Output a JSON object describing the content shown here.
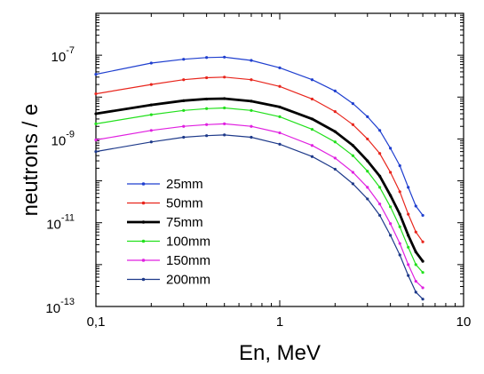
{
  "chart_data": {
    "type": "line",
    "xlabel": "En, MeV",
    "ylabel": "neutrons / e",
    "x_scale": "log",
    "y_scale": "log",
    "xlim": [
      0.1,
      10
    ],
    "ylim": [
      1e-13,
      1e-06
    ],
    "x_ticks": [
      {
        "value": 0.1,
        "label": "0,1"
      },
      {
        "value": 1,
        "label": "1"
      },
      {
        "value": 10,
        "label": "10"
      }
    ],
    "y_ticks": [
      {
        "value": 1e-13,
        "base": "10",
        "exp": "-13"
      },
      {
        "value": 1e-11,
        "base": "10",
        "exp": "-11"
      },
      {
        "value": 1e-09,
        "base": "10",
        "exp": "-9"
      },
      {
        "value": 1e-07,
        "base": "10",
        "exp": "-7"
      }
    ],
    "legend_position": "bottom-left",
    "x": [
      0.1,
      0.2,
      0.3,
      0.4,
      0.5,
      0.7,
      1.0,
      1.5,
      2.0,
      2.5,
      3.0,
      3.5,
      4.0,
      4.5,
      5.0,
      5.5,
      6.0
    ],
    "series": [
      {
        "name": "25mm",
        "color": "#1f3fcf",
        "line_width": 1.2,
        "values": [
          3.5e-08,
          6.5e-08,
          8e-08,
          8.8e-08,
          9e-08,
          7.5e-08,
          5e-08,
          2.6e-08,
          1.4e-08,
          7e-09,
          3.4e-09,
          1.6e-09,
          6e-10,
          2.3e-10,
          7e-11,
          2.5e-11,
          1.5e-11
        ]
      },
      {
        "name": "50mm",
        "color": "#e8251c",
        "line_width": 1.2,
        "values": [
          1.2e-08,
          2e-08,
          2.6e-08,
          2.9e-08,
          3e-08,
          2.6e-08,
          1.8e-08,
          9e-09,
          4.5e-09,
          2.2e-09,
          1e-09,
          4.5e-10,
          1.6e-10,
          5.5e-11,
          1.6e-11,
          6e-12,
          3.5e-12
        ]
      },
      {
        "name": "75mm",
        "color": "#000000",
        "line_width": 2.8,
        "values": [
          4e-09,
          6.5e-09,
          8.2e-09,
          9e-09,
          9.2e-09,
          8e-09,
          5.8e-09,
          3e-09,
          1.5e-09,
          7e-10,
          3e-10,
          1.3e-10,
          4.5e-11,
          1.6e-11,
          5e-12,
          2e-12,
          1.2e-12
        ]
      },
      {
        "name": "100mm",
        "color": "#22e01c",
        "line_width": 1.2,
        "values": [
          2.3e-09,
          3.8e-09,
          4.8e-09,
          5.3e-09,
          5.5e-09,
          4.8e-09,
          3.4e-09,
          1.7e-09,
          8.5e-10,
          4e-10,
          1.7e-10,
          7e-11,
          2.4e-11,
          8e-12,
          2.6e-12,
          1e-12,
          6.5e-13
        ]
      },
      {
        "name": "150mm",
        "color": "#e020e0",
        "line_width": 1.2,
        "values": [
          9.5e-10,
          1.6e-09,
          2e-09,
          2.2e-09,
          2.3e-09,
          2e-09,
          1.4e-09,
          7e-10,
          3.5e-10,
          1.6e-10,
          7e-11,
          2.8e-11,
          9.5e-12,
          3.2e-12,
          1e-12,
          4e-13,
          2.8e-13
        ]
      },
      {
        "name": "200mm",
        "color": "#1e3a8a",
        "line_width": 1.2,
        "values": [
          5e-10,
          8.5e-10,
          1.1e-09,
          1.2e-09,
          1.25e-09,
          1.1e-09,
          7.5e-10,
          3.8e-10,
          1.9e-10,
          8.5e-11,
          3.7e-11,
          1.5e-11,
          5e-12,
          1.7e-12,
          5.5e-13,
          2.2e-13,
          1.5e-13
        ]
      }
    ]
  }
}
